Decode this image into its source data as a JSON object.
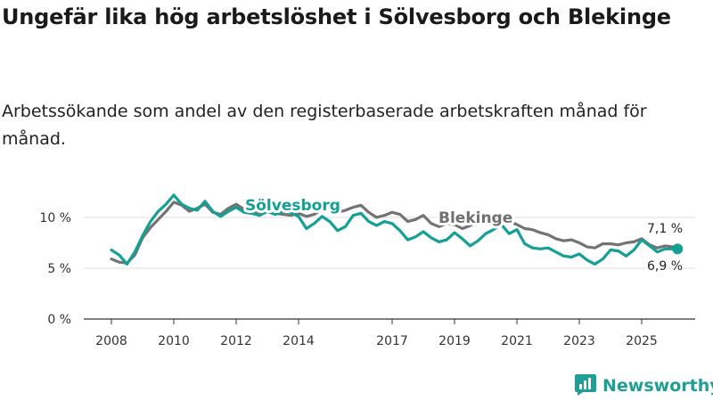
{
  "header": {
    "title": "Ungefär lika hög arbetslöshet i Sölvesborg och Blekinge",
    "subtitle": "Arbetssökande som andel av den registerbaserade arbetskraften månad för månad."
  },
  "brand": {
    "name": "Newsworthy"
  },
  "colors": {
    "solvesborg": "#14a095",
    "blekinge": "#737373",
    "grid": "#dddddd",
    "axis": "#333333"
  },
  "chart_data": {
    "type": "line",
    "title": "Ungefär lika hög arbetslöshet i Sölvesborg och Blekinge",
    "xlabel": "",
    "ylabel": "",
    "xlim": [
      2007.5,
      2026.6
    ],
    "ylim": [
      0,
      13
    ],
    "y_ticks": [
      0,
      5,
      10
    ],
    "y_tick_labels": [
      "0 %",
      "5 %",
      "10 %"
    ],
    "x_ticks": [
      2008,
      2010,
      2012,
      2014,
      2017,
      2019,
      2021,
      2023,
      2025
    ],
    "x_tick_labels": [
      "2008",
      "2010",
      "2012",
      "2014",
      "2017",
      "2019",
      "2021",
      "2023",
      "2025"
    ],
    "grid": true,
    "series": [
      {
        "name": "Blekinge",
        "label": "Blekinge",
        "end_label": "7,1 %",
        "x": [
          2008.0,
          2008.25,
          2008.5,
          2008.75,
          2009.0,
          2009.25,
          2009.5,
          2009.75,
          2010.0,
          2010.25,
          2010.5,
          2010.75,
          2011.0,
          2011.25,
          2011.5,
          2011.75,
          2012.0,
          2012.25,
          2012.5,
          2012.75,
          2013.0,
          2013.25,
          2013.5,
          2013.75,
          2014.0,
          2014.25,
          2014.5,
          2014.75,
          2015.0,
          2015.25,
          2015.5,
          2015.75,
          2016.0,
          2016.25,
          2016.5,
          2016.75,
          2017.0,
          2017.25,
          2017.5,
          2017.75,
          2018.0,
          2018.25,
          2018.5,
          2018.75,
          2019.0,
          2019.25,
          2019.5,
          2019.75,
          2020.0,
          2020.25,
          2020.5,
          2020.75,
          2021.0,
          2021.25,
          2021.5,
          2021.75,
          2022.0,
          2022.25,
          2022.5,
          2022.75,
          2023.0,
          2023.25,
          2023.5,
          2023.75,
          2024.0,
          2024.25,
          2024.5,
          2024.75,
          2025.0,
          2025.25,
          2025.5,
          2025.75,
          2026.0,
          2026.15
        ],
        "values": [
          5.9,
          5.6,
          5.5,
          6.3,
          8.0,
          9.0,
          9.8,
          10.6,
          11.5,
          11.2,
          10.6,
          10.9,
          11.3,
          10.5,
          10.3,
          10.9,
          11.3,
          10.8,
          10.6,
          10.5,
          10.6,
          10.4,
          10.3,
          10.2,
          10.4,
          10.1,
          10.3,
          10.8,
          10.9,
          10.5,
          10.7,
          11.0,
          11.2,
          10.5,
          10.0,
          10.2,
          10.5,
          10.3,
          9.6,
          9.8,
          10.2,
          9.4,
          9.1,
          9.4,
          9.3,
          8.9,
          9.2,
          9.6,
          9.5,
          9.8,
          10.2,
          9.6,
          9.3,
          8.9,
          8.8,
          8.5,
          8.3,
          7.9,
          7.7,
          7.8,
          7.5,
          7.1,
          7.0,
          7.4,
          7.4,
          7.3,
          7.5,
          7.6,
          7.9,
          7.3,
          7.0,
          7.2,
          7.1,
          7.1
        ]
      },
      {
        "name": "Sölvesborg",
        "label": "Sölvesborg",
        "end_label": "6,9 %",
        "x": [
          2008.0,
          2008.25,
          2008.5,
          2008.75,
          2009.0,
          2009.25,
          2009.5,
          2009.75,
          2010.0,
          2010.25,
          2010.5,
          2010.75,
          2011.0,
          2011.25,
          2011.5,
          2011.75,
          2012.0,
          2012.25,
          2012.5,
          2012.75,
          2013.0,
          2013.25,
          2013.5,
          2013.75,
          2014.0,
          2014.25,
          2014.5,
          2014.75,
          2015.0,
          2015.25,
          2015.5,
          2015.75,
          2016.0,
          2016.25,
          2016.5,
          2016.75,
          2017.0,
          2017.25,
          2017.5,
          2017.75,
          2018.0,
          2018.25,
          2018.5,
          2018.75,
          2019.0,
          2019.25,
          2019.5,
          2019.75,
          2020.0,
          2020.25,
          2020.5,
          2020.75,
          2021.0,
          2021.25,
          2021.5,
          2021.75,
          2022.0,
          2022.25,
          2022.5,
          2022.75,
          2023.0,
          2023.25,
          2023.5,
          2023.75,
          2024.0,
          2024.25,
          2024.5,
          2024.75,
          2025.0,
          2025.25,
          2025.5,
          2025.75,
          2026.0,
          2026.15
        ],
        "values": [
          6.8,
          6.3,
          5.4,
          6.6,
          8.2,
          9.6,
          10.6,
          11.3,
          12.2,
          11.3,
          10.9,
          10.7,
          11.6,
          10.6,
          10.1,
          10.6,
          11.0,
          10.5,
          10.4,
          10.2,
          10.6,
          10.3,
          10.6,
          10.5,
          10.1,
          8.9,
          9.4,
          10.1,
          9.6,
          8.7,
          9.1,
          10.2,
          10.4,
          9.6,
          9.2,
          9.6,
          9.4,
          8.7,
          7.8,
          8.1,
          8.6,
          8.0,
          7.6,
          7.8,
          8.5,
          7.9,
          7.2,
          7.7,
          8.4,
          8.8,
          9.3,
          8.4,
          8.8,
          7.4,
          7.0,
          6.9,
          7.0,
          6.6,
          6.2,
          6.1,
          6.4,
          5.8,
          5.4,
          5.9,
          6.8,
          6.7,
          6.2,
          6.8,
          7.8,
          7.2,
          6.6,
          6.9,
          6.9,
          6.9
        ]
      }
    ]
  }
}
